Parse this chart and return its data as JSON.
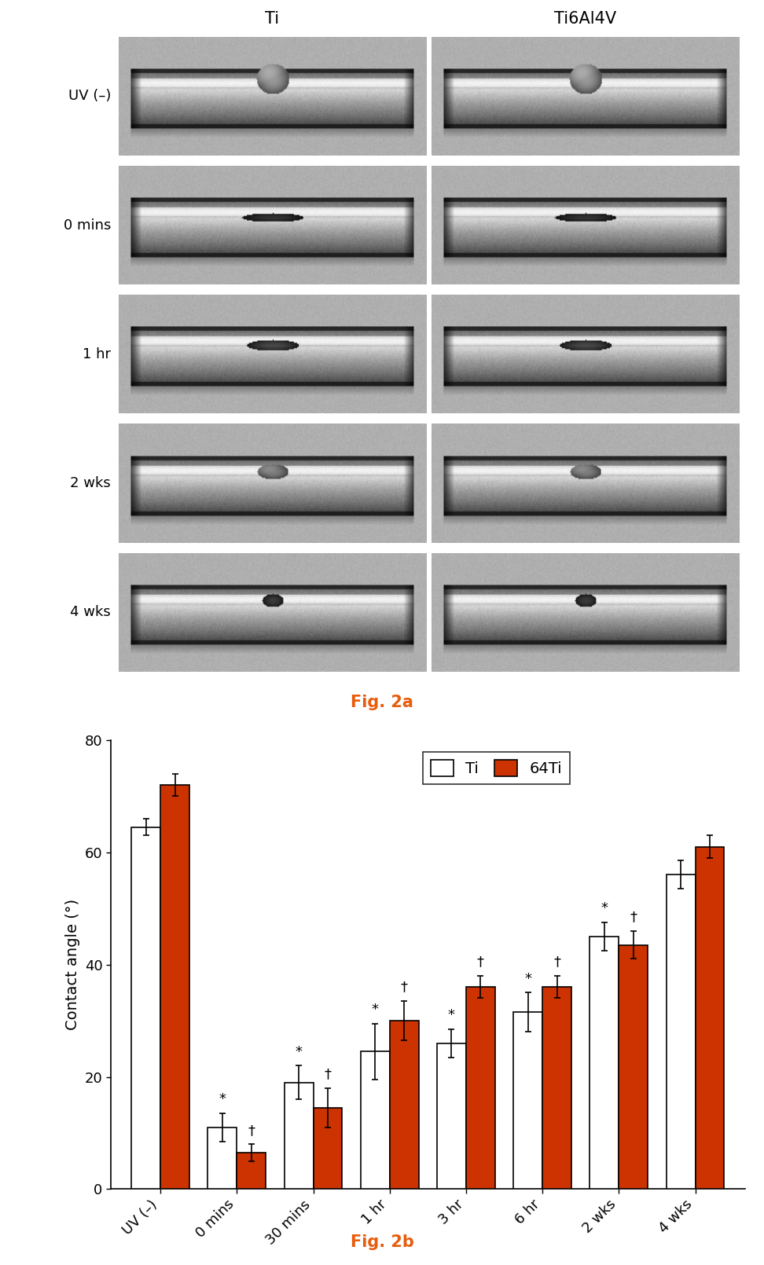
{
  "fig2a_title": "Fig. 2a",
  "fig2b_title": "Fig. 2b",
  "col_headers": [
    "Ti",
    "Ti6Al4V"
  ],
  "row_labels": [
    "UV (–)",
    "0 mins",
    "1 hr",
    "2 wks",
    "4 wks"
  ],
  "bar_categories": [
    "UV (–)",
    "0 mins",
    "30 mins",
    "1 hr",
    "3 hr",
    "6 hr",
    "2 wks",
    "4 wks"
  ],
  "ti_values": [
    64.5,
    11.0,
    19.0,
    24.5,
    26.0,
    31.5,
    45.0,
    56.0
  ],
  "ti64_values": [
    72.0,
    6.5,
    14.5,
    30.0,
    36.0,
    36.0,
    43.5,
    61.0
  ],
  "ti_errors": [
    1.5,
    2.5,
    3.0,
    5.0,
    2.5,
    3.5,
    2.5,
    2.5
  ],
  "ti64_errors": [
    2.0,
    1.5,
    3.5,
    3.5,
    2.0,
    2.0,
    2.5,
    2.0
  ],
  "ti_stars": [
    "",
    "*",
    "*",
    "*",
    "*",
    "*",
    "*",
    ""
  ],
  "ti64_daggers": [
    "",
    "†",
    "†",
    "†",
    "†",
    "†",
    "†",
    ""
  ],
  "bar_color_ti": "#ffffff",
  "bar_color_ti64": "#cc3300",
  "bar_edgecolor": "#000000",
  "ylabel": "Contact angle (°)",
  "ylim": [
    0,
    80
  ],
  "yticks": [
    0,
    20,
    40,
    60,
    80
  ],
  "fig2a_label_color": "#e85c0d",
  "fig2b_label_color": "#e85c0d",
  "background_color": "#ffffff"
}
